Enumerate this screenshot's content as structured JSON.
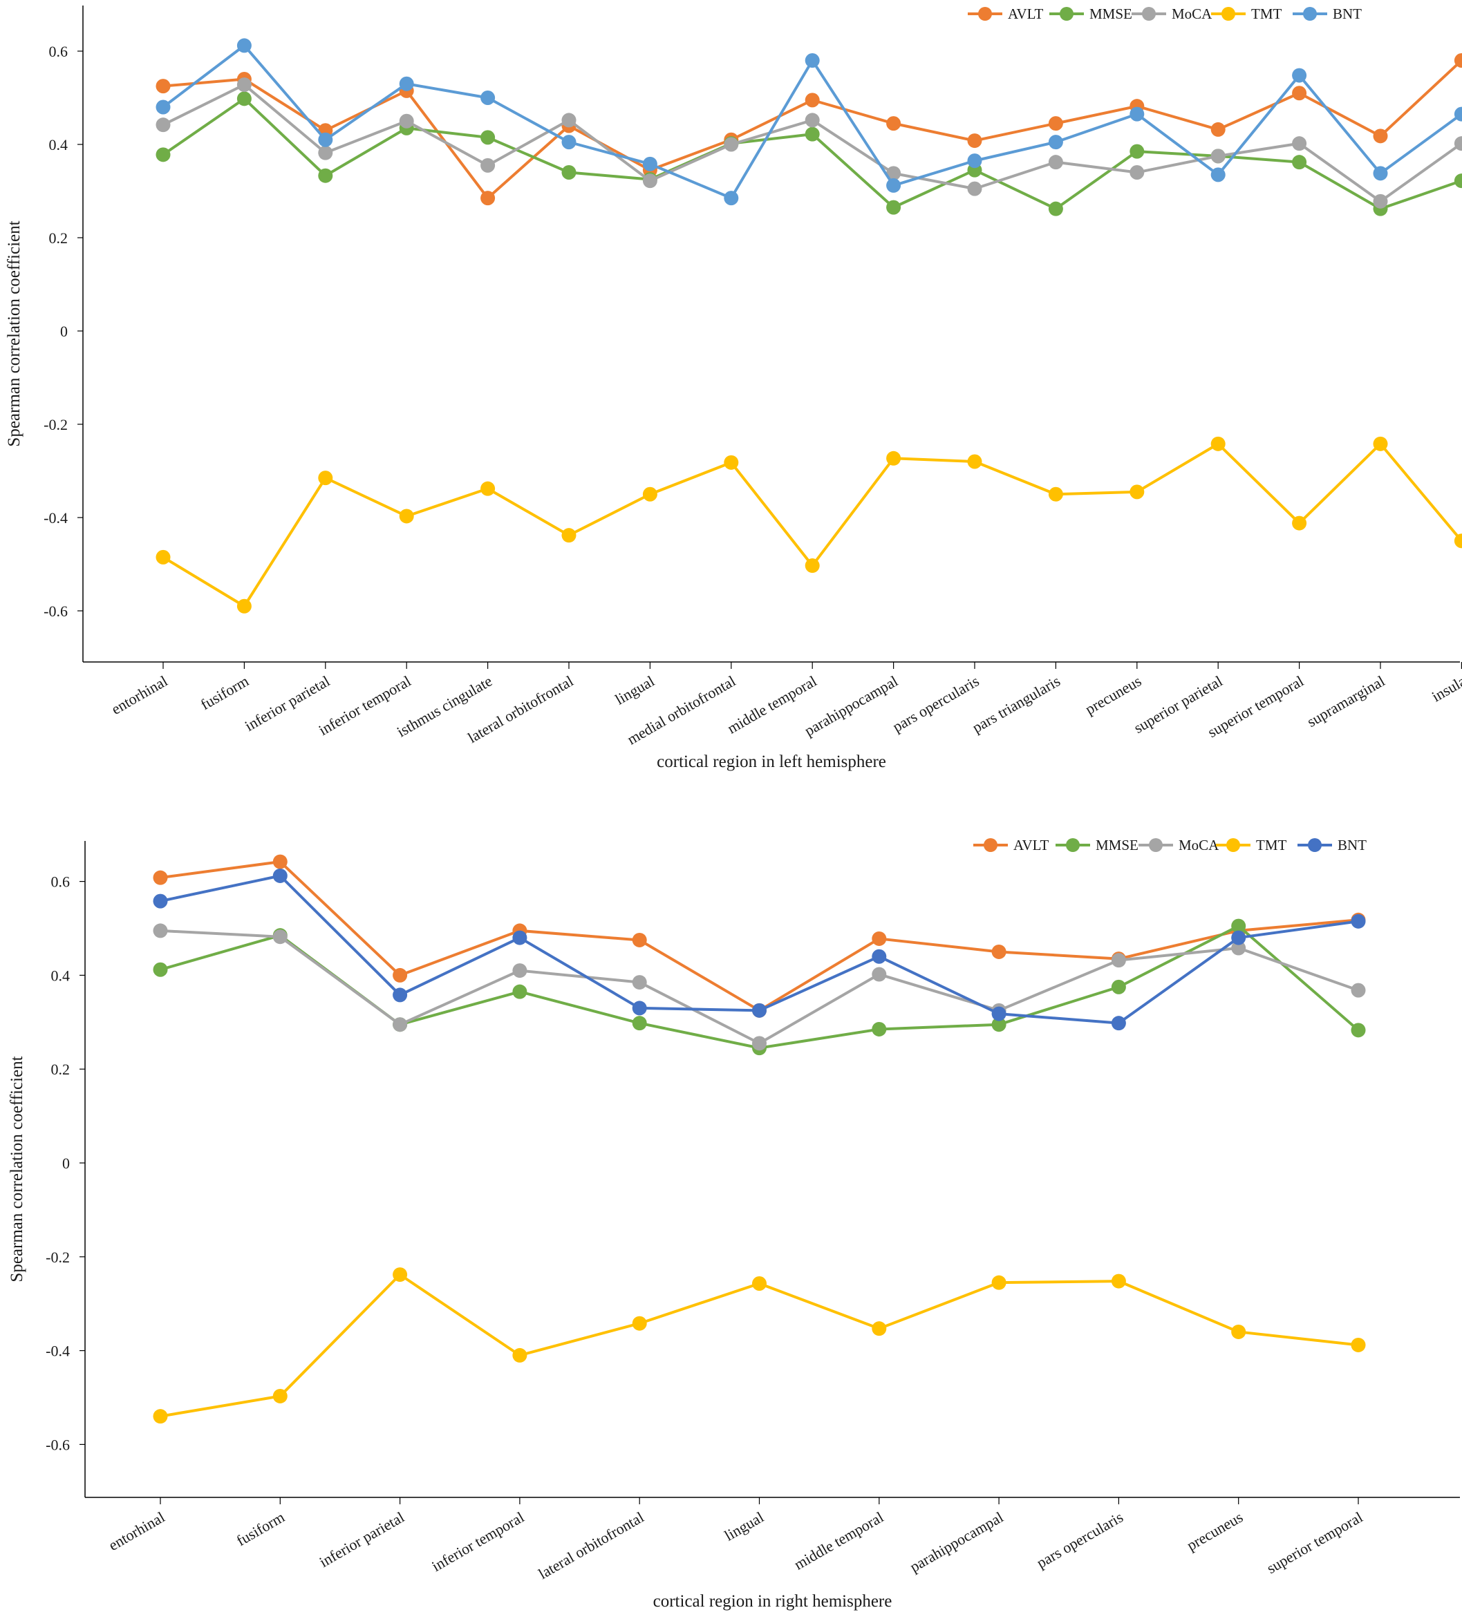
{
  "series_colors": {
    "AVLT": "#ED7D31",
    "MMSE": "#70AD47",
    "MoCA": "#A5A5A5",
    "TMT": "#FFC000",
    "BNT_left": "#5B9BD5",
    "BNT_right": "#4472C4"
  },
  "chart_data": [
    {
      "type": "line",
      "panel": "left",
      "xlabel": "cortical region in left hemisphere",
      "ylabel": "Spearman  correlation coefficient",
      "ylim": [
        -0.7,
        0.7
      ],
      "yticks": [
        0.6,
        0.4,
        0.2,
        0,
        -0.2,
        -0.4,
        -0.6
      ],
      "ytick_labels": [
        "0.6",
        "0.4",
        "0.2",
        "0",
        "-0.2",
        "-0.4",
        "-0.6"
      ],
      "grid": false,
      "legend_position": "top-right",
      "categories": [
        "entorhinal",
        "fusiform",
        "inferior parietal",
        "inferior temporal",
        "isthmus cingulate",
        "lateral orbitofrontal",
        "lingual",
        "medial orbitofrontal",
        "middle temporal",
        "parahippocampal",
        "pars opercularis",
        "pars triangularis",
        "precuneus",
        "superior parietal",
        "superior temporal",
        "supramarginal",
        "insula"
      ],
      "series": [
        {
          "name": "AVLT",
          "color": "#ED7D31",
          "values": [
            0.525,
            0.54,
            0.43,
            0.515,
            0.285,
            0.44,
            0.345,
            0.41,
            0.495,
            0.445,
            0.408,
            0.445,
            0.482,
            0.432,
            0.51,
            0.418,
            0.58
          ]
        },
        {
          "name": "MMSE",
          "color": "#70AD47",
          "values": [
            0.378,
            0.498,
            0.333,
            0.435,
            0.415,
            0.34,
            0.325,
            0.402,
            0.422,
            0.265,
            0.345,
            0.262,
            0.385,
            0.375,
            0.362,
            0.262,
            0.322
          ]
        },
        {
          "name": "MoCA",
          "color": "#A5A5A5",
          "values": [
            0.442,
            0.528,
            0.382,
            0.45,
            0.355,
            0.452,
            0.322,
            0.4,
            0.452,
            0.338,
            0.305,
            0.362,
            0.34,
            0.375,
            0.402,
            0.278,
            0.402
          ]
        },
        {
          "name": "TMT",
          "color": "#FFC000",
          "values": [
            -0.485,
            -0.59,
            -0.315,
            -0.397,
            -0.338,
            -0.438,
            -0.35,
            -0.282,
            -0.503,
            -0.273,
            -0.28,
            -0.35,
            -0.345,
            -0.242,
            -0.412,
            -0.242,
            -0.45
          ]
        },
        {
          "name": "BNT",
          "color": "#5B9BD5",
          "values": [
            0.48,
            0.612,
            0.41,
            0.53,
            0.5,
            0.405,
            0.358,
            0.285,
            0.58,
            0.312,
            0.365,
            0.405,
            0.465,
            0.335,
            0.548,
            0.338,
            0.465
          ]
        }
      ]
    },
    {
      "type": "line",
      "panel": "right",
      "xlabel": "cortical region in right hemisphere",
      "ylabel": "Spearman  correlation coefficient",
      "ylim": [
        -0.7,
        0.7
      ],
      "yticks": [
        0.6,
        0.4,
        0.2,
        0,
        -0.2,
        -0.4,
        -0.6
      ],
      "ytick_labels": [
        "0.6",
        "0.4",
        "0.2",
        "0",
        "-0.2",
        "-0.4",
        "-0.6"
      ],
      "grid": false,
      "legend_position": "top-right",
      "categories": [
        "entorhinal",
        "fusiform",
        "inferior parietal",
        "inferior temporal",
        "lateral orbitofrontal",
        "lingual",
        "middle temporal",
        "parahippocampal",
        "pars opercularis",
        "precuneus",
        "superior temporal"
      ],
      "series": [
        {
          "name": "AVLT",
          "color": "#ED7D31",
          "values": [
            0.608,
            0.642,
            0.4,
            0.495,
            0.475,
            0.325,
            0.478,
            0.45,
            0.435,
            0.495,
            0.518
          ]
        },
        {
          "name": "MMSE",
          "color": "#70AD47",
          "values": [
            0.412,
            0.485,
            0.295,
            0.365,
            0.298,
            0.245,
            0.285,
            0.295,
            0.375,
            0.505,
            0.283
          ]
        },
        {
          "name": "MoCA",
          "color": "#A5A5A5",
          "values": [
            0.495,
            0.482,
            0.295,
            0.41,
            0.385,
            0.255,
            0.402,
            0.325,
            0.432,
            0.458,
            0.368
          ]
        },
        {
          "name": "TMT",
          "color": "#FFC000",
          "values": [
            -0.54,
            -0.497,
            -0.238,
            -0.41,
            -0.342,
            -0.257,
            -0.353,
            -0.255,
            -0.252,
            -0.36,
            -0.388
          ]
        },
        {
          "name": "BNT",
          "color": "#4472C4",
          "values": [
            0.558,
            0.612,
            0.358,
            0.48,
            0.33,
            0.325,
            0.44,
            0.318,
            0.298,
            0.48,
            0.515
          ]
        }
      ]
    }
  ]
}
